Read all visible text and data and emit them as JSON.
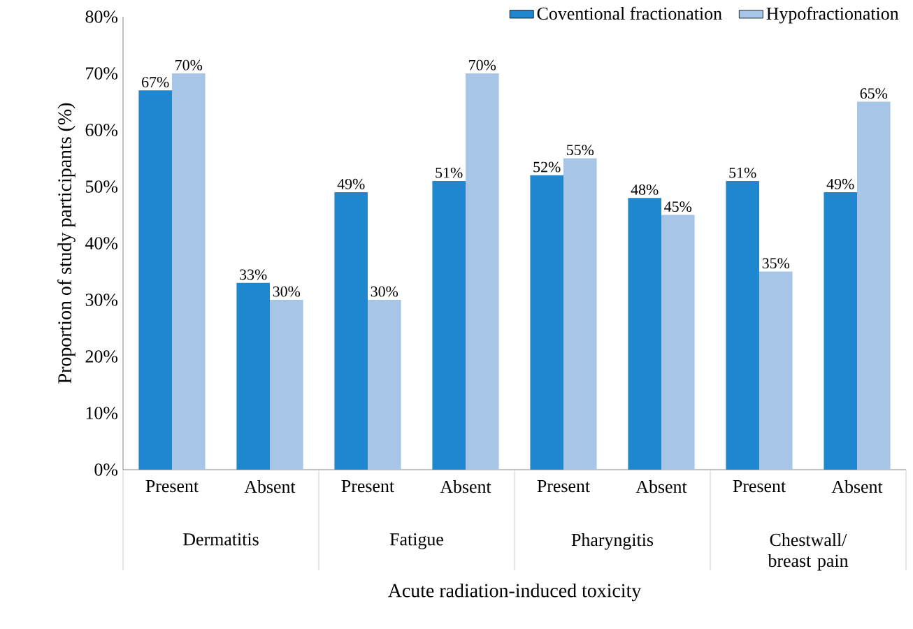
{
  "chart_data": {
    "type": "bar",
    "categories": [
      "Present",
      "Absent",
      "Present",
      "Absent",
      "Present",
      "Absent",
      "Present",
      "Absent"
    ],
    "series": [
      {
        "name": "Coventional fractionation",
        "color": "#1f87cf",
        "values": [
          67,
          33,
          49,
          51,
          52,
          48,
          51,
          49
        ],
        "value_labels": [
          "67%",
          "33%",
          "49%",
          "51%",
          "52%",
          "48%",
          "51%",
          "49%"
        ]
      },
      {
        "name": "Hypofractionation",
        "color": "#a7c5e6",
        "values": [
          70,
          30,
          30,
          70,
          55,
          45,
          35,
          65
        ],
        "value_labels": [
          "70%",
          "30%",
          "30%",
          "70%",
          "55%",
          "45%",
          "35%",
          "65%"
        ]
      }
    ],
    "xlabel": "Acute radiation-induced toxicity",
    "ylabel": "Proportion of study participants (%)",
    "annotations": [
      "Dermatitis",
      "Fatigue",
      "Pharyngitis",
      "Chestwall/ breast pain"
    ],
    "ylim": [
      0,
      80
    ],
    "yticks": [
      {
        "value": 0,
        "label": "0%"
      },
      {
        "value": 10,
        "label": "10%"
      },
      {
        "value": 20,
        "label": "20%"
      },
      {
        "value": 30,
        "label": "30%"
      },
      {
        "value": 40,
        "label": "40%"
      },
      {
        "value": 50,
        "label": "50%"
      },
      {
        "value": 60,
        "label": "60%"
      },
      {
        "value": 70,
        "label": "70%"
      },
      {
        "value": 80,
        "label": "80%"
      }
    ],
    "legend": "top right"
  }
}
